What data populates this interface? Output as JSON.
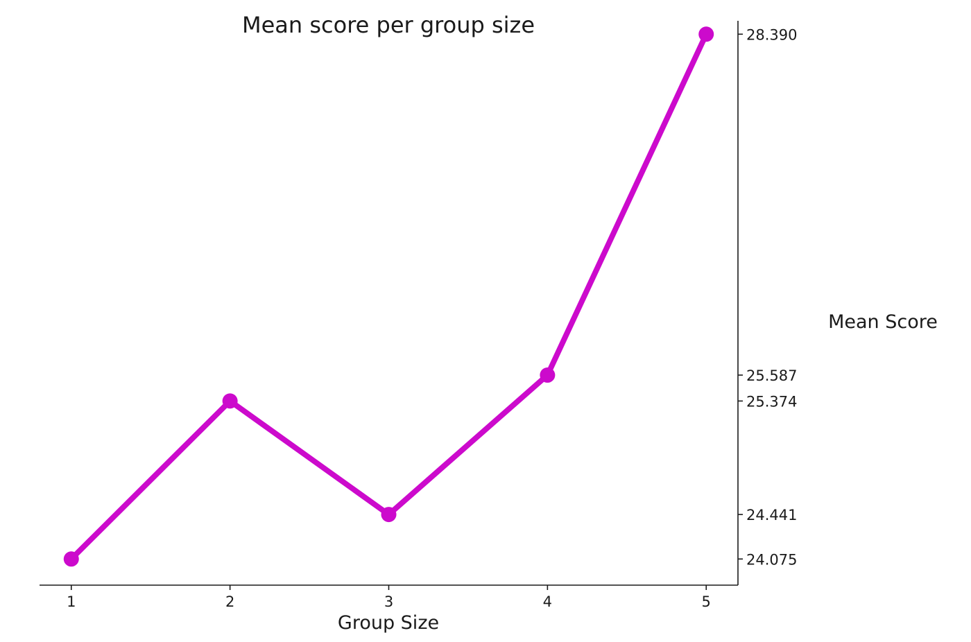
{
  "chart_data": {
    "type": "line",
    "title": "Mean score per group size",
    "xlabel": "Group Size",
    "ylabel": "Mean Score",
    "x": [
      1,
      2,
      3,
      4,
      5
    ],
    "values": [
      24.075,
      25.374,
      24.441,
      25.587,
      28.39
    ],
    "x_tick_labels": [
      "1",
      "2",
      "3",
      "4",
      "5"
    ],
    "y_ticks": [
      24.075,
      24.441,
      25.374,
      25.587,
      28.39
    ],
    "y_tick_labels": [
      "24.075",
      "24.441",
      "25.374",
      "25.587",
      "28.390"
    ],
    "xlim": [
      0.8,
      5.2
    ],
    "ylim": [
      23.86,
      28.5
    ],
    "y_axis_side": "right",
    "grid": false,
    "color": "#cc0acc"
  }
}
